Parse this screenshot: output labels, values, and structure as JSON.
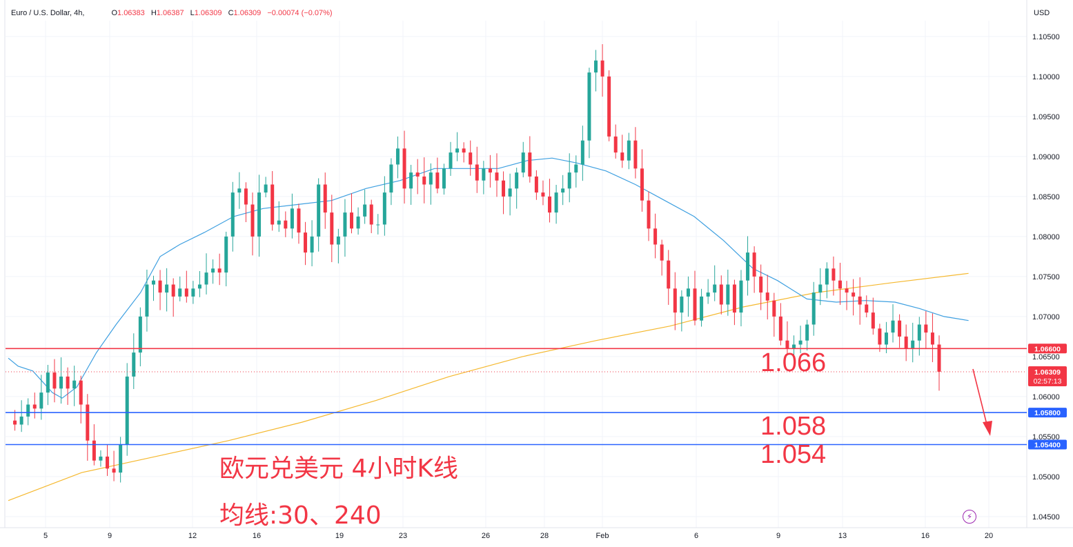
{
  "header": {
    "symbol": "Euro / U.S. Dollar, 4h,",
    "o_label": "O",
    "o_value": "1.06383",
    "h_label": "H",
    "h_value": "1.06387",
    "l_label": "L",
    "l_value": "1.06309",
    "c_label": "C",
    "c_value": "1.06309",
    "change": "−0.00074 (−0.07%)"
  },
  "currency_label": "USD",
  "annotations": {
    "title_cn": "欧元兑美元 4小时K线",
    "ma_cn": "均线:30、240",
    "level_1066": "1.066",
    "level_1058": "1.058",
    "level_1054": "1.054"
  },
  "price_tags": {
    "resistance": "1.06600",
    "current_price": "1.06309",
    "countdown": "02:57:13",
    "support_1": "1.05800",
    "support_2": "1.05400"
  },
  "colors": {
    "up": "#26a69a",
    "down": "#f23645",
    "ma30": "#3d9fe0",
    "ma240": "#f5b82e",
    "support": "#2962ff",
    "resistance": "#f23645",
    "grid": "#f0f3fa"
  },
  "chart_data": {
    "type": "candlestick",
    "title": "欧元兑美元 4小时K线",
    "timeframe": "4h",
    "ylim": [
      1.0445,
      1.1065
    ],
    "y_ticks": [
      "1.04500",
      "1.05000",
      "1.05500",
      "1.06000",
      "1.06500",
      "1.07000",
      "1.07500",
      "1.08000",
      "1.08500",
      "1.09000",
      "1.09500",
      "1.10000",
      "1.10500"
    ],
    "x_ticks": [
      "5",
      "9",
      "12",
      "16",
      "19",
      "23",
      "26",
      "28",
      "Feb",
      "6",
      "9",
      "13",
      "16",
      "20"
    ],
    "horizontal_levels": [
      {
        "value": 1.066,
        "label": "1.06600",
        "color": "#f23645"
      },
      {
        "value": 1.058,
        "label": "1.05800",
        "color": "#2962ff"
      },
      {
        "value": 1.054,
        "label": "1.05400",
        "color": "#2962ff"
      }
    ],
    "last_price": 1.06309,
    "ohlc_sequence_approx": [
      1.057,
      1.0565,
      1.0575,
      1.059,
      1.0585,
      1.0605,
      1.063,
      1.061,
      1.0625,
      1.061,
      1.062,
      1.059,
      1.0545,
      1.052,
      1.0525,
      1.051,
      1.0505,
      1.054,
      1.0625,
      1.0655,
      1.07,
      1.074,
      1.0745,
      1.073,
      1.074,
      1.0725,
      1.0735,
      1.0725,
      1.0735,
      1.074,
      1.0755,
      1.076,
      1.0755,
      1.08,
      1.0855,
      1.086,
      1.084,
      1.08,
      1.0855,
      1.0865,
      1.0815,
      1.082,
      1.081,
      1.0835,
      1.0805,
      1.078,
      1.08,
      1.0865,
      1.083,
      1.079,
      1.08,
      1.083,
      1.081,
      1.0825,
      1.084,
      1.0815,
      1.0815,
      1.0855,
      1.089,
      1.091,
      1.086,
      1.088,
      1.0875,
      1.0865,
      1.088,
      1.086,
      1.0885,
      1.0905,
      1.091,
      1.0905,
      1.089,
      1.087,
      1.0885,
      1.088,
      1.087,
      1.085,
      1.086,
      1.088,
      1.0905,
      1.0875,
      1.0855,
      1.085,
      1.083,
      1.0855,
      1.086,
      1.088,
      1.089,
      1.092,
      1.1005,
      1.102,
      1.1,
      1.0925,
      1.0905,
      1.0895,
      1.092,
      1.0885,
      1.0845,
      1.081,
      1.079,
      1.077,
      1.0735,
      1.0705,
      1.0725,
      1.0735,
      1.0695,
      1.0725,
      1.073,
      1.074,
      1.0715,
      1.074,
      1.0705,
      1.0745,
      1.078,
      1.075,
      1.073,
      1.072,
      1.07,
      1.067,
      1.066,
      1.0665,
      1.067,
      1.069,
      1.073,
      1.074,
      1.076,
      1.0745,
      1.0735,
      1.073,
      1.0725,
      1.0715,
      1.0705,
      1.0685,
      1.0665,
      1.068,
      1.0695,
      1.0675,
      1.066,
      1.067,
      1.069,
      1.068,
      1.0665,
      1.0631
    ],
    "series": [
      {
        "name": "MA30",
        "period": 30
      },
      {
        "name": "MA240",
        "period": 240
      }
    ],
    "ma30_points": [
      [
        0,
        1.0648
      ],
      [
        4,
        1.0638
      ],
      [
        10,
        1.0632
      ],
      [
        18,
        1.0605
      ],
      [
        22,
        1.0598
      ],
      [
        28,
        1.0612
      ],
      [
        36,
        1.0655
      ],
      [
        44,
        1.069
      ],
      [
        54,
        1.073
      ],
      [
        62,
        1.0775
      ],
      [
        70,
        1.079
      ],
      [
        80,
        1.0805
      ],
      [
        92,
        1.0825
      ],
      [
        104,
        1.0835
      ],
      [
        118,
        1.084
      ],
      [
        132,
        1.0845
      ],
      [
        146,
        1.086
      ],
      [
        160,
        1.087
      ],
      [
        174,
        1.0885
      ],
      [
        188,
        1.0885
      ],
      [
        200,
        1.0885
      ],
      [
        212,
        1.0895
      ],
      [
        222,
        1.0898
      ],
      [
        232,
        1.0892
      ],
      [
        244,
        1.0882
      ],
      [
        256,
        1.0865
      ],
      [
        268,
        1.0845
      ],
      [
        280,
        1.0825
      ],
      [
        292,
        1.0795
      ],
      [
        304,
        1.076
      ],
      [
        314,
        1.0745
      ],
      [
        326,
        1.0722
      ],
      [
        338,
        1.0718
      ],
      [
        350,
        1.072
      ],
      [
        362,
        1.0718
      ],
      [
        372,
        1.071
      ],
      [
        382,
        1.07
      ],
      [
        392,
        1.0695
      ]
    ],
    "ma240_points": [
      [
        0,
        1.047
      ],
      [
        30,
        1.0505
      ],
      [
        60,
        1.0525
      ],
      [
        90,
        1.0545
      ],
      [
        120,
        1.0568
      ],
      [
        150,
        1.0595
      ],
      [
        180,
        1.0625
      ],
      [
        210,
        1.065
      ],
      [
        240,
        1.067
      ],
      [
        270,
        1.0688
      ],
      [
        300,
        1.0712
      ],
      [
        330,
        1.073
      ],
      [
        360,
        1.0742
      ],
      [
        392,
        1.0754
      ]
    ]
  }
}
